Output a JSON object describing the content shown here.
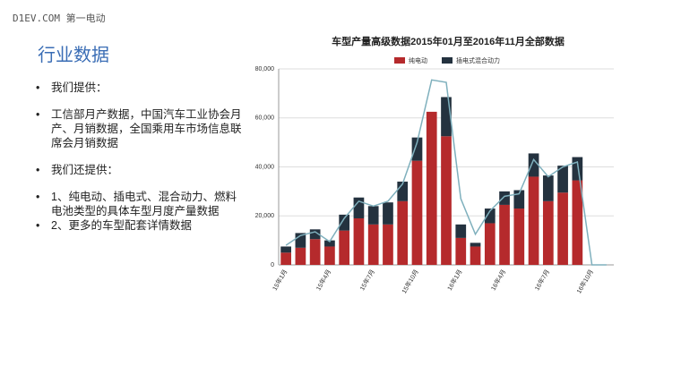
{
  "header": {
    "site": "D1EV.COM 第一电动"
  },
  "slide": {
    "title": "行业数据",
    "bullets": [
      "我们提供：",
      "工信部月产数据，中国汽车工业协会月产、月销数据，全国乘用车市场信息联席会月销数据",
      "我们还提供：",
      "1、纯电动、插电式、混合动力、燃料电池类型的具体车型月度产量数据",
      "2、更多的车型配套详情数据"
    ]
  },
  "chart_data": {
    "type": "bar",
    "stacked": true,
    "title": "车型产量高级数据2015年01月至2016年11月全部数据",
    "categories": [
      "15年1月",
      null,
      null,
      "15年4月",
      null,
      null,
      "15年7月",
      null,
      null,
      "15年10月",
      null,
      null,
      "16年1月",
      null,
      null,
      "16年4月",
      null,
      null,
      "16年7月",
      null,
      null,
      "16年10月",
      null
    ],
    "series": [
      {
        "name": "纯电动",
        "color": "#b52a2c",
        "values": [
          5000,
          7000,
          10500,
          7500,
          14000,
          19000,
          16500,
          16500,
          26000,
          42500,
          62500,
          52500,
          11000,
          7500,
          17000,
          24500,
          23000,
          36000,
          26000,
          29500,
          34500,
          0,
          0
        ]
      },
      {
        "name": "插电式混合动力",
        "color": "#24323f",
        "values": [
          2500,
          6000,
          4000,
          2500,
          6500,
          8500,
          7500,
          9000,
          8000,
          9500,
          0,
          16000,
          5500,
          1500,
          6000,
          5500,
          7500,
          9500,
          10500,
          11000,
          9500,
          0,
          0
        ]
      },
      {
        "type": "line",
        "color": "#7fb0bd",
        "values": [
          8000,
          12000,
          13500,
          9500,
          19000,
          26000,
          24000,
          26000,
          33000,
          50000,
          75500,
          74500,
          27000,
          12500,
          22000,
          28000,
          29000,
          43000,
          36000,
          40000,
          42000,
          0,
          0
        ]
      }
    ],
    "ylim": [
      0,
      80000
    ],
    "yticks": [
      0,
      {
        "value": 20000,
        "label": "20,000"
      },
      {
        "value": 40000,
        "label": "40,000"
      },
      {
        "value": 60000,
        "label": "60,000"
      },
      {
        "value": 80000,
        "label": "80,000"
      }
    ],
    "grid": true
  }
}
